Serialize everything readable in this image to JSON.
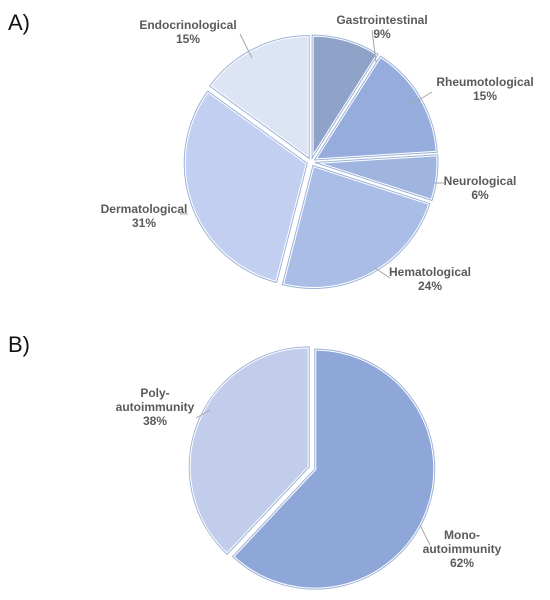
{
  "chart_data": [
    {
      "type": "pie",
      "panel_label": "A)",
      "title": "",
      "categories": [
        "Gastrointestinal",
        "Rheumotological",
        "Neurological",
        "Hematological",
        "Dermatological",
        "Endocrinological"
      ],
      "values": [
        9,
        15,
        6,
        24,
        31,
        15
      ],
      "value_labels": [
        "9%",
        "15%",
        "6%",
        "24%",
        "31%",
        "15%"
      ],
      "colors": [
        "#8fa3c9",
        "#95acdc",
        "#9fb5e0",
        "#a9bde6",
        "#c3cff0",
        "#dde4f4"
      ],
      "exploded": true,
      "legend": "none"
    },
    {
      "type": "pie",
      "panel_label": "B)",
      "title": "",
      "categories": [
        "Mono-autoimmunity",
        "Poly-autoimmunity"
      ],
      "label_lines": [
        [
          "Mono-",
          "autoimmunity"
        ],
        [
          "Poly-",
          "autoimmunity"
        ]
      ],
      "values": [
        62,
        38
      ],
      "value_labels": [
        "62%",
        "38%"
      ],
      "colors": [
        "#8fa6d8",
        "#c2cdec"
      ],
      "exploded": true,
      "legend": "none"
    }
  ]
}
